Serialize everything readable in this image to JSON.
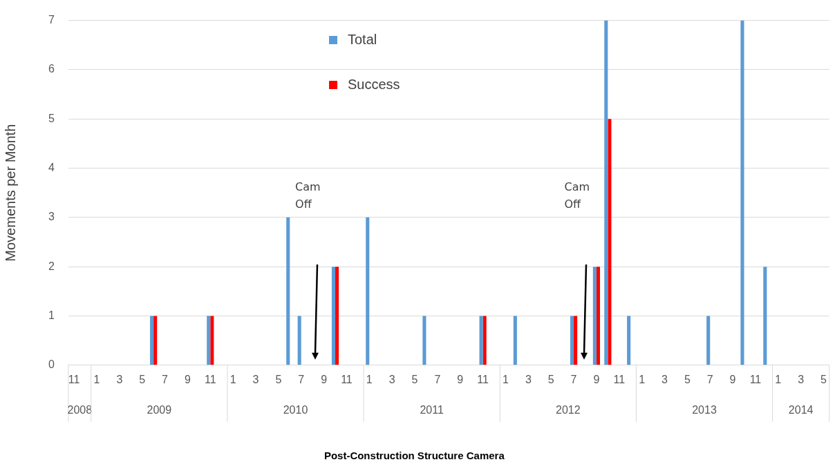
{
  "chart_data": {
    "type": "bar",
    "ylabel": "Movements per Month",
    "categories": [
      "11",
      null,
      "1",
      null,
      "3",
      null,
      "5",
      null,
      "7",
      null,
      "9",
      null,
      "11",
      null,
      "1",
      null,
      "3",
      null,
      "5",
      null,
      "7",
      null,
      "9",
      null,
      "11",
      null,
      "1",
      null,
      "3",
      null,
      "5",
      null,
      "7",
      null,
      "9",
      null,
      "11",
      null,
      "1",
      null,
      "3",
      null,
      "5",
      null,
      "7",
      null,
      "9",
      null,
      "11",
      null,
      "1",
      null,
      "3",
      null,
      "5",
      null,
      "7",
      null,
      "9",
      null,
      "11",
      null,
      "1",
      null,
      "3",
      null,
      "5"
    ],
    "series": [
      {
        "name": "Total",
        "color": "#5b9bd5",
        "values": [
          0,
          0,
          0,
          0,
          0,
          0,
          0,
          1,
          0,
          0,
          0,
          0,
          1,
          0,
          0,
          0,
          0,
          0,
          0,
          3,
          1,
          0,
          0,
          2,
          0,
          0,
          3,
          0,
          0,
          0,
          0,
          1,
          0,
          0,
          0,
          0,
          1,
          0,
          0,
          1,
          0,
          0,
          0,
          0,
          1,
          0,
          2,
          7,
          0,
          1,
          0,
          0,
          0,
          0,
          0,
          0,
          1,
          0,
          0,
          7,
          0,
          2,
          0,
          0,
          0,
          0,
          0
        ]
      },
      {
        "name": "Success",
        "color": "#ff0000",
        "values": [
          0,
          0,
          0,
          0,
          0,
          0,
          0,
          1,
          0,
          0,
          0,
          0,
          1,
          0,
          0,
          0,
          0,
          0,
          0,
          0,
          0,
          0,
          0,
          2,
          0,
          0,
          0,
          0,
          0,
          0,
          0,
          0,
          0,
          0,
          0,
          0,
          1,
          0,
          0,
          0,
          0,
          0,
          0,
          0,
          1,
          0,
          2,
          5,
          0,
          0,
          0,
          0,
          0,
          0,
          0,
          0,
          0,
          0,
          0,
          0,
          0,
          0,
          0,
          0,
          0,
          0,
          0
        ]
      }
    ],
    "ylim": [
      0,
      7
    ],
    "yticks": [
      0,
      1,
      2,
      3,
      4,
      5,
      6,
      7
    ],
    "grid": "y",
    "legend": "top",
    "annotations": [
      "Cam Off",
      "Cam Off",
      "2008",
      "2009",
      "2010",
      "2011",
      "2012",
      "2013",
      "2014",
      "Post-Construction Structure Camera"
    ]
  }
}
